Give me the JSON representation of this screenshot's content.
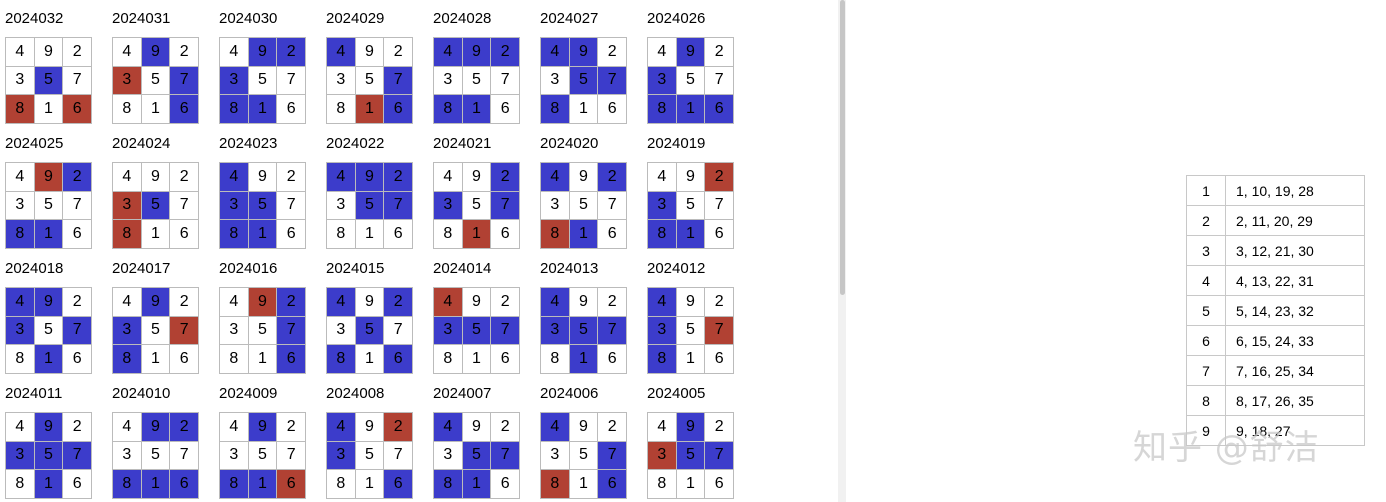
{
  "colors": {
    "none": "#ffffff",
    "blue": "#3c3ccb",
    "red": "#b14133"
  },
  "square": [
    4,
    9,
    2,
    3,
    5,
    7,
    8,
    1,
    6
  ],
  "draws": [
    {
      "id": "2024032",
      "marks": [
        "w",
        "w",
        "w",
        "w",
        "b",
        "w",
        "r",
        "w",
        "r"
      ]
    },
    {
      "id": "2024031",
      "marks": [
        "w",
        "b",
        "w",
        "r",
        "w",
        "b",
        "w",
        "w",
        "b"
      ]
    },
    {
      "id": "2024030",
      "marks": [
        "w",
        "b",
        "b",
        "b",
        "w",
        "w",
        "b",
        "b",
        "w"
      ]
    },
    {
      "id": "2024029",
      "marks": [
        "b",
        "w",
        "w",
        "w",
        "w",
        "b",
        "w",
        "r",
        "b"
      ]
    },
    {
      "id": "2024028",
      "marks": [
        "b",
        "b",
        "b",
        "w",
        "w",
        "w",
        "b",
        "b",
        "w"
      ]
    },
    {
      "id": "2024027",
      "marks": [
        "b",
        "b",
        "w",
        "w",
        "b",
        "b",
        "b",
        "w",
        "w"
      ]
    },
    {
      "id": "2024026",
      "marks": [
        "w",
        "b",
        "w",
        "b",
        "w",
        "w",
        "b",
        "b",
        "b"
      ]
    },
    {
      "id": "2024025",
      "marks": [
        "w",
        "r",
        "b",
        "w",
        "w",
        "w",
        "b",
        "b",
        "w"
      ]
    },
    {
      "id": "2024024",
      "marks": [
        "w",
        "w",
        "w",
        "r",
        "b",
        "w",
        "r",
        "w",
        "w"
      ]
    },
    {
      "id": "2024023",
      "marks": [
        "b",
        "w",
        "w",
        "b",
        "b",
        "w",
        "b",
        "b",
        "w"
      ]
    },
    {
      "id": "2024022",
      "marks": [
        "b",
        "b",
        "b",
        "w",
        "b",
        "b",
        "w",
        "w",
        "w"
      ]
    },
    {
      "id": "2024021",
      "marks": [
        "w",
        "w",
        "b",
        "b",
        "w",
        "b",
        "w",
        "r",
        "w"
      ]
    },
    {
      "id": "2024020",
      "marks": [
        "b",
        "w",
        "b",
        "w",
        "w",
        "w",
        "r",
        "b",
        "w"
      ]
    },
    {
      "id": "2024019",
      "marks": [
        "w",
        "w",
        "r",
        "b",
        "w",
        "w",
        "b",
        "b",
        "w"
      ]
    },
    {
      "id": "2024018",
      "marks": [
        "b",
        "b",
        "w",
        "b",
        "w",
        "b",
        "w",
        "b",
        "w"
      ]
    },
    {
      "id": "2024017",
      "marks": [
        "w",
        "b",
        "w",
        "b",
        "w",
        "r",
        "b",
        "w",
        "w"
      ]
    },
    {
      "id": "2024016",
      "marks": [
        "w",
        "r",
        "b",
        "w",
        "w",
        "b",
        "w",
        "w",
        "b"
      ]
    },
    {
      "id": "2024015",
      "marks": [
        "b",
        "w",
        "b",
        "w",
        "b",
        "w",
        "b",
        "w",
        "b"
      ]
    },
    {
      "id": "2024014",
      "marks": [
        "r",
        "w",
        "w",
        "b",
        "b",
        "b",
        "w",
        "w",
        "w"
      ]
    },
    {
      "id": "2024013",
      "marks": [
        "b",
        "w",
        "w",
        "b",
        "b",
        "b",
        "w",
        "b",
        "w"
      ]
    },
    {
      "id": "2024012",
      "marks": [
        "b",
        "w",
        "w",
        "b",
        "w",
        "r",
        "b",
        "w",
        "w"
      ]
    },
    {
      "id": "2024011",
      "marks": [
        "w",
        "b",
        "w",
        "b",
        "b",
        "b",
        "w",
        "b",
        "w"
      ]
    },
    {
      "id": "2024010",
      "marks": [
        "w",
        "b",
        "b",
        "w",
        "w",
        "w",
        "b",
        "b",
        "b"
      ]
    },
    {
      "id": "2024009",
      "marks": [
        "w",
        "b",
        "w",
        "w",
        "w",
        "w",
        "b",
        "b",
        "r"
      ]
    },
    {
      "id": "2024008",
      "marks": [
        "b",
        "w",
        "r",
        "b",
        "w",
        "w",
        "w",
        "w",
        "b"
      ]
    },
    {
      "id": "2024007",
      "marks": [
        "b",
        "w",
        "w",
        "w",
        "b",
        "b",
        "b",
        "b",
        "w"
      ]
    },
    {
      "id": "2024006",
      "marks": [
        "b",
        "w",
        "w",
        "w",
        "w",
        "b",
        "r",
        "w",
        "b"
      ]
    },
    {
      "id": "2024005",
      "marks": [
        "w",
        "b",
        "w",
        "r",
        "b",
        "b",
        "w",
        "w",
        "w"
      ]
    }
  ],
  "mapping": [
    {
      "key": "1",
      "values": "1, 10, 19, 28"
    },
    {
      "key": "2",
      "values": "2, 11, 20, 29"
    },
    {
      "key": "3",
      "values": "3, 12, 21, 30"
    },
    {
      "key": "4",
      "values": "4, 13, 22, 31"
    },
    {
      "key": "5",
      "values": "5, 14, 23, 32"
    },
    {
      "key": "6",
      "values": "6, 15, 24, 33"
    },
    {
      "key": "7",
      "values": "7, 16, 25, 34"
    },
    {
      "key": "8",
      "values": "8, 17, 26, 35"
    },
    {
      "key": "9",
      "values": "9, 18, 27"
    }
  ],
  "watermark": "知乎 @舒洁"
}
